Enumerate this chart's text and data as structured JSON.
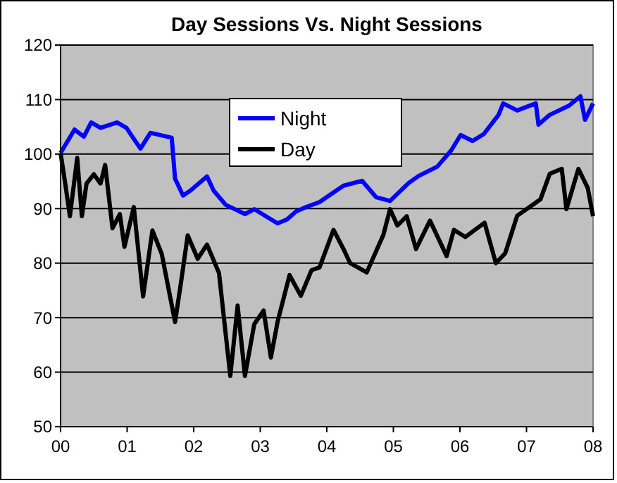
{
  "chart_data": {
    "type": "line",
    "title": "Day Sessions Vs. Night Sessions",
    "xlim": [
      0,
      8
    ],
    "xticks": [
      {
        "value": 0,
        "label": "00"
      },
      {
        "value": 1,
        "label": "01"
      },
      {
        "value": 2,
        "label": "02"
      },
      {
        "value": 3,
        "label": "03"
      },
      {
        "value": 4,
        "label": "04"
      },
      {
        "value": 5,
        "label": "05"
      },
      {
        "value": 6,
        "label": "06"
      },
      {
        "value": 7,
        "label": "07"
      },
      {
        "value": 8,
        "label": "08"
      }
    ],
    "ylim": [
      50,
      120
    ],
    "yticks": [
      50,
      60,
      70,
      80,
      90,
      100,
      110,
      120
    ],
    "grid": "y",
    "legend": "top",
    "marker": "none",
    "line_style": "solid",
    "series": [
      {
        "name": "Night",
        "color": "#0000ff",
        "x": [
          0,
          0.21,
          0.35,
          0.46,
          0.6,
          0.85,
          0.99,
          1.2,
          1.35,
          1.67,
          1.72,
          1.84,
          1.95,
          2.2,
          2.3,
          2.48,
          2.77,
          2.91,
          3.26,
          3.4,
          3.54,
          3.69,
          3.89,
          4.25,
          4.53,
          4.74,
          4.95,
          5.23,
          5.38,
          5.66,
          5.87,
          6.01,
          6.19,
          6.36,
          6.58,
          6.65,
          6.86,
          7.14,
          7.18,
          7.35,
          7.64,
          7.81,
          7.88,
          8
        ],
        "values": [
          100.2,
          104.5,
          103.2,
          105.8,
          104.8,
          105.8,
          104.8,
          101,
          103.9,
          103,
          95.5,
          92.4,
          93.3,
          95.9,
          93.3,
          90.7,
          89,
          89.9,
          87.3,
          88,
          89.5,
          90.3,
          91.2,
          94.2,
          95.1,
          92.1,
          91.4,
          94.7,
          96,
          97.7,
          100.7,
          103.5,
          102.4,
          103.7,
          107.2,
          109.3,
          108,
          109.3,
          105.4,
          107.2,
          108.9,
          110.6,
          106.3,
          109.3
        ]
      },
      {
        "name": "Day",
        "color": "#000000",
        "x": [
          0,
          0.07,
          0.14,
          0.25,
          0.32,
          0.39,
          0.5,
          0.6,
          0.67,
          0.78,
          0.89,
          0.96,
          1.1,
          1.24,
          1.38,
          1.52,
          1.72,
          1.81,
          1.91,
          2.06,
          2.2,
          2.38,
          2.55,
          2.66,
          2.77,
          2.91,
          3.05,
          3.16,
          3.26,
          3.44,
          3.61,
          3.77,
          3.89,
          4.1,
          4.25,
          4.35,
          4.6,
          4.85,
          4.95,
          5.06,
          5.2,
          5.34,
          5.55,
          5.8,
          5.91,
          6.08,
          6.37,
          6.54,
          6.68,
          6.86,
          7.21,
          7.35,
          7.53,
          7.6,
          7.78,
          7.92,
          8
        ],
        "values": [
          100.2,
          94.6,
          88.6,
          99.3,
          88.6,
          94.6,
          96.3,
          94.6,
          98,
          86.4,
          89,
          83,
          90.3,
          73.9,
          86,
          81.7,
          69.2,
          76.5,
          85.1,
          80.8,
          83.4,
          78.2,
          59.3,
          72.2,
          59.3,
          68.8,
          71.3,
          62.7,
          69.2,
          77.8,
          74,
          78.7,
          79.2,
          86.1,
          82.6,
          80,
          78.3,
          85.2,
          89.9,
          86.9,
          88.6,
          82.6,
          87.8,
          81.3,
          86.1,
          84.8,
          87.4,
          80,
          81.8,
          88.7,
          91.7,
          96.4,
          97.3,
          89.9,
          97.3,
          93.8,
          88.6
        ]
      }
    ]
  }
}
